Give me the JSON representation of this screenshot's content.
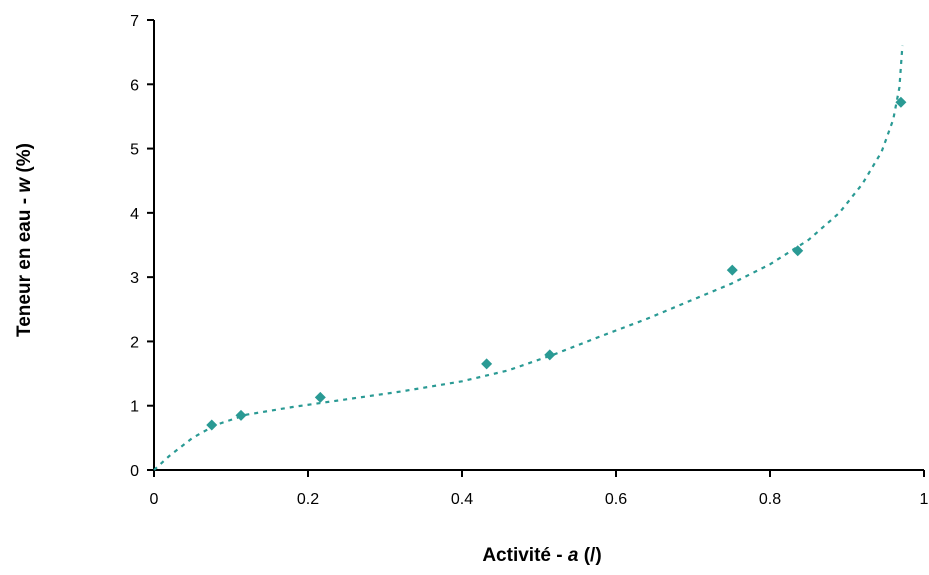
{
  "chart_data": {
    "type": "scatter",
    "title": "",
    "xlabel": "Activité - a  (/)",
    "xlabel_parts": [
      "Activité - ",
      "a",
      "  (/)"
    ],
    "ylabel": "Teneur en eau - w  (%)",
    "ylabel_parts": [
      "Teneur en eau - ",
      "w",
      "  (%)"
    ],
    "xlim": [
      0,
      1
    ],
    "ylim": [
      0,
      7
    ],
    "xticks": [
      "0",
      "0.2",
      "0.4",
      "0.6",
      "0.8",
      "1"
    ],
    "xtick_values": [
      0,
      0.2,
      0.4,
      0.6,
      0.8,
      1
    ],
    "yticks": [
      "0",
      "1",
      "2",
      "3",
      "4",
      "5",
      "6",
      "7"
    ],
    "ytick_values": [
      0,
      1,
      2,
      3,
      4,
      5,
      6,
      7
    ],
    "grid": false,
    "legend": "none",
    "series": [
      {
        "type": "scatter",
        "marker": "diamond",
        "color": "#2a9a94",
        "points": [
          {
            "x": 0.075,
            "y": 0.7
          },
          {
            "x": 0.113,
            "y": 0.85
          },
          {
            "x": 0.216,
            "y": 1.13
          },
          {
            "x": 0.432,
            "y": 1.65
          },
          {
            "x": 0.514,
            "y": 1.79
          },
          {
            "x": 0.751,
            "y": 3.11
          },
          {
            "x": 0.836,
            "y": 3.41
          },
          {
            "x": 0.97,
            "y": 5.72
          }
        ]
      },
      {
        "type": "line",
        "style": "dotted",
        "color": "#2a9a94",
        "points": [
          {
            "x": 0.0,
            "y": 0.0
          },
          {
            "x": 0.02,
            "y": 0.22
          },
          {
            "x": 0.05,
            "y": 0.5
          },
          {
            "x": 0.08,
            "y": 0.7
          },
          {
            "x": 0.12,
            "y": 0.86
          },
          {
            "x": 0.18,
            "y": 0.98
          },
          {
            "x": 0.25,
            "y": 1.1
          },
          {
            "x": 0.32,
            "y": 1.22
          },
          {
            "x": 0.4,
            "y": 1.38
          },
          {
            "x": 0.46,
            "y": 1.55
          },
          {
            "x": 0.52,
            "y": 1.8
          },
          {
            "x": 0.58,
            "y": 2.08
          },
          {
            "x": 0.64,
            "y": 2.35
          },
          {
            "x": 0.7,
            "y": 2.65
          },
          {
            "x": 0.75,
            "y": 2.9
          },
          {
            "x": 0.8,
            "y": 3.2
          },
          {
            "x": 0.85,
            "y": 3.58
          },
          {
            "x": 0.89,
            "y": 4.0
          },
          {
            "x": 0.92,
            "y": 4.45
          },
          {
            "x": 0.945,
            "y": 4.95
          },
          {
            "x": 0.96,
            "y": 5.45
          },
          {
            "x": 0.968,
            "y": 5.95
          },
          {
            "x": 0.972,
            "y": 6.6
          }
        ]
      }
    ]
  }
}
